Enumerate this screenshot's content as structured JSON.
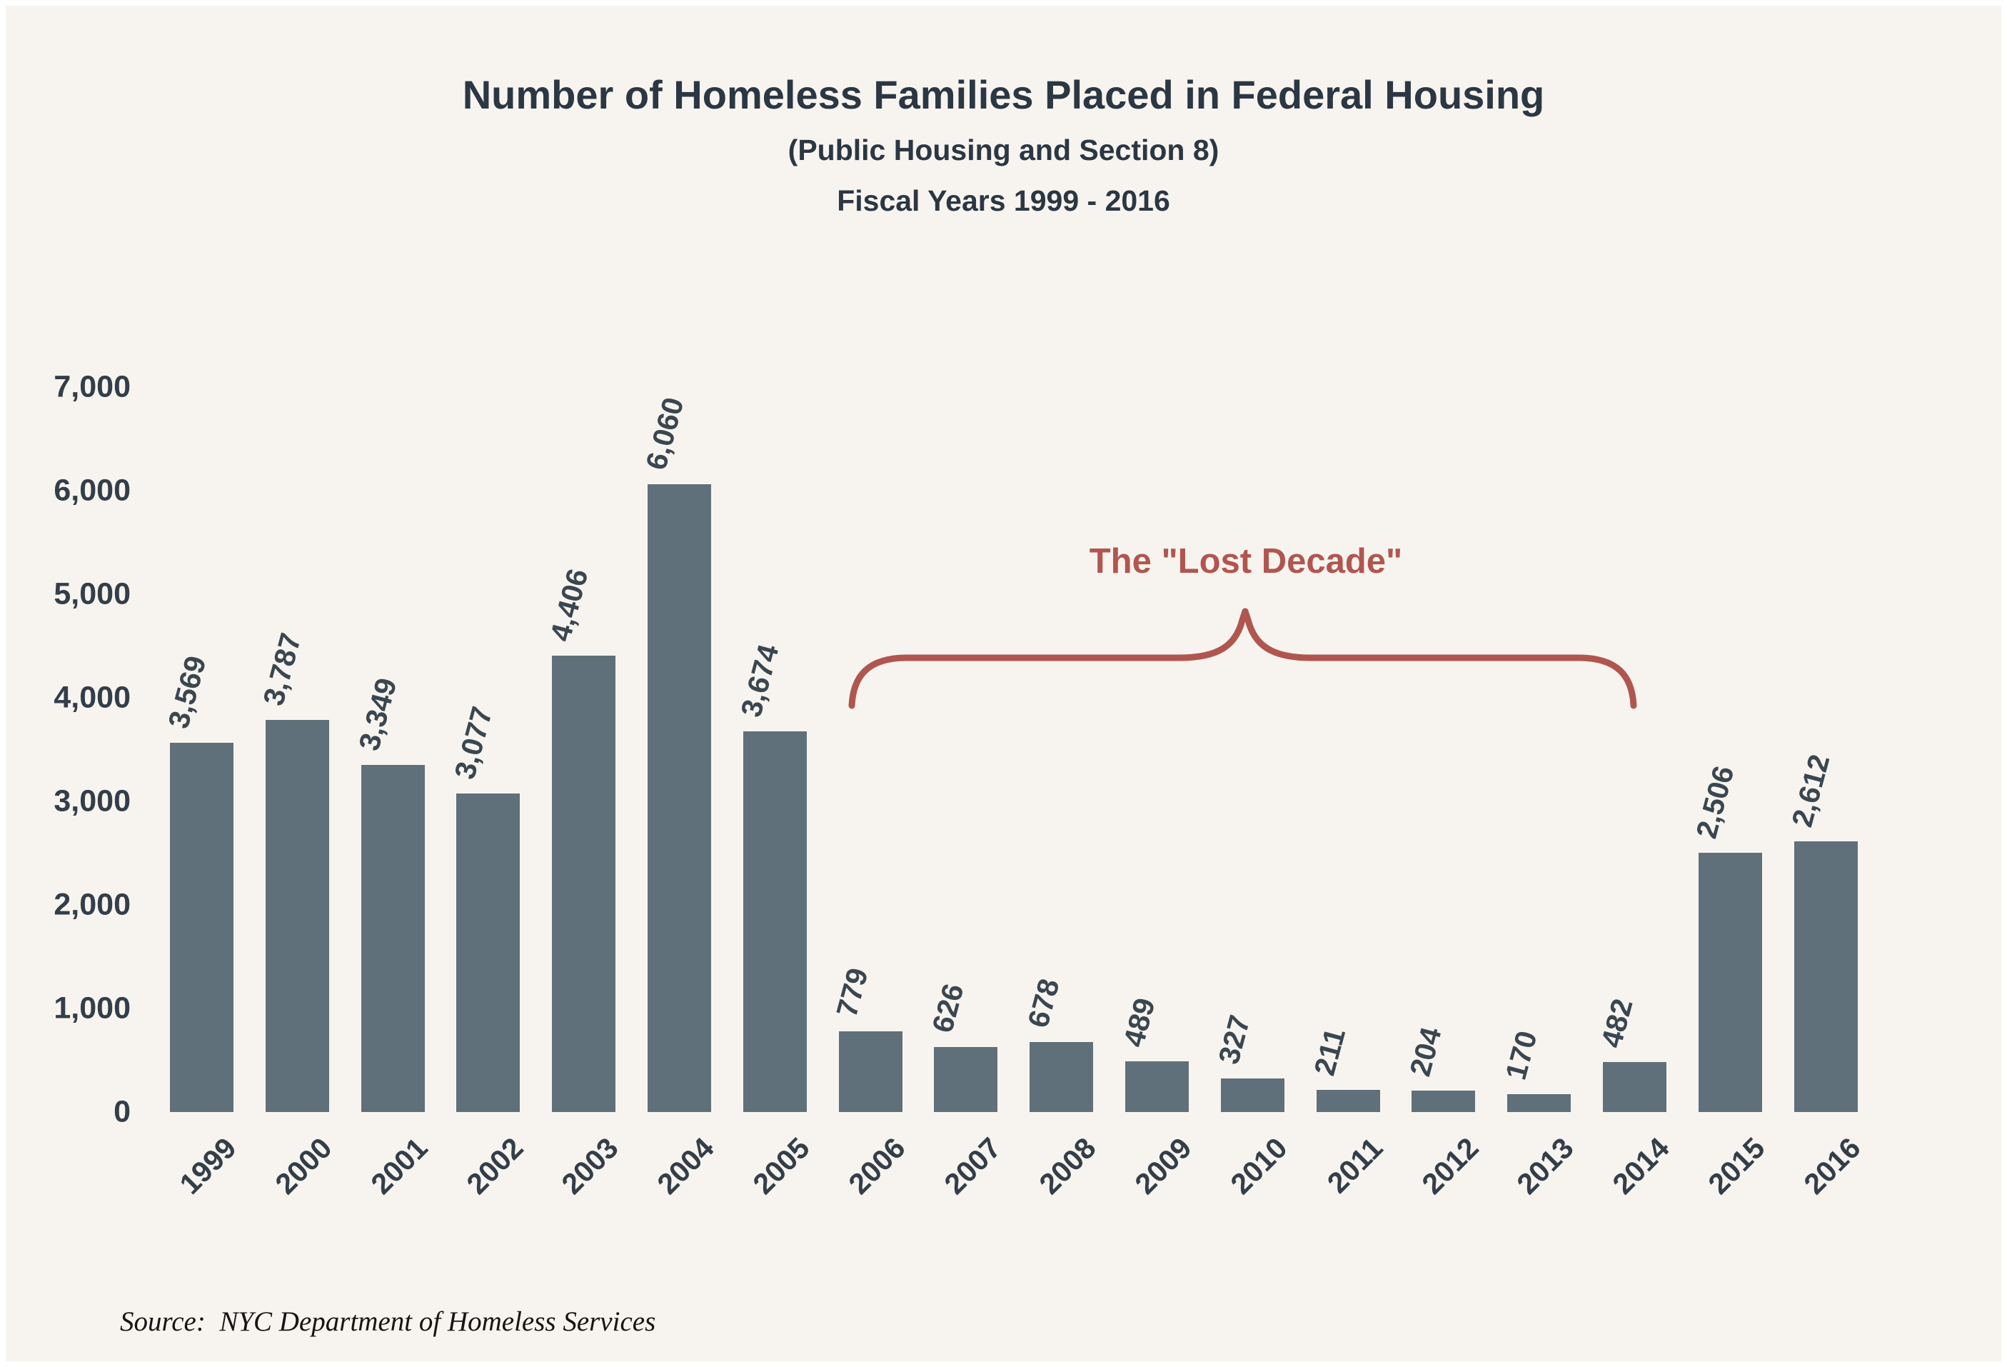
{
  "chart_data": {
    "type": "bar",
    "title": "Number of Homeless Families Placed in Federal Housing",
    "subtitle1": "(Public Housing and Section 8)",
    "subtitle2": "Fiscal Years 1999 - 2016",
    "categories": [
      "1999",
      "2000",
      "2001",
      "2002",
      "2003",
      "2004",
      "2005",
      "2006",
      "2007",
      "2008",
      "2009",
      "2010",
      "2011",
      "2012",
      "2013",
      "2014",
      "2015",
      "2016"
    ],
    "values": [
      3569,
      3787,
      3349,
      3077,
      4406,
      6060,
      3674,
      779,
      626,
      678,
      489,
      327,
      211,
      204,
      170,
      482,
      2506,
      2612
    ],
    "value_labels": [
      "3,569",
      "3,787",
      "3,349",
      "3,077",
      "4,406",
      "6,060",
      "3,674",
      "779",
      "626",
      "678",
      "489",
      "327",
      "211",
      "204",
      "170",
      "482",
      "2,506",
      "2,612"
    ],
    "xlabel": "",
    "ylabel": "",
    "ylim": [
      0,
      7000
    ],
    "ytick_values": [
      0,
      1000,
      2000,
      3000,
      4000,
      5000,
      6000,
      7000
    ],
    "ytick_labels": [
      "0",
      "1,000",
      "2,000",
      "3,000",
      "4,000",
      "5,000",
      "6,000",
      "7,000"
    ],
    "grid": false,
    "legend": false,
    "annotation": {
      "label": "The \"Lost Decade\"",
      "span_categories": [
        "2006",
        "2014"
      ]
    },
    "colors": {
      "background": "#f7f4ef",
      "bar": "#60707a",
      "value_label": "#3a4650",
      "axis_label": "#333e49",
      "title": "#2b3743",
      "annotation": "#b0564f"
    }
  },
  "source_note": "Source:  NYC Department of Homeless Services"
}
